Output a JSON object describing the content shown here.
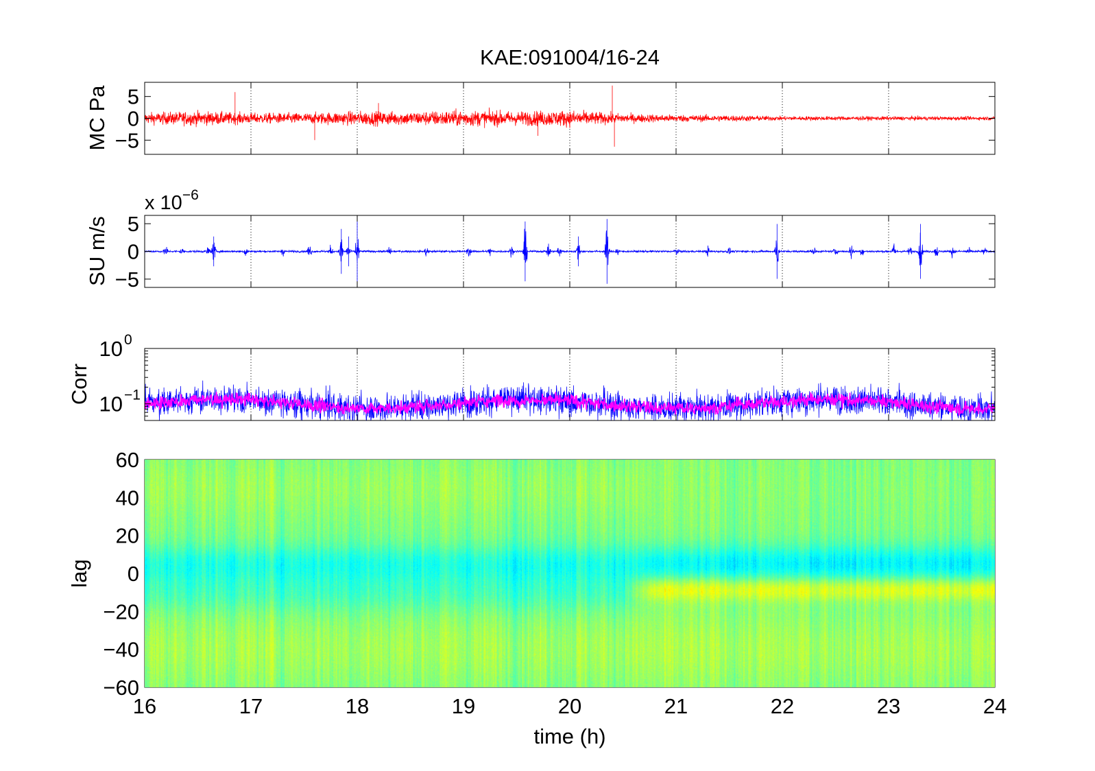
{
  "figure": {
    "title": "KAE:091004/16-24",
    "xlabel": "time (h)",
    "x_ticks": [
      "16",
      "17",
      "18",
      "19",
      "20",
      "21",
      "22",
      "23",
      "24"
    ]
  },
  "chart_data": [
    {
      "type": "line",
      "panel": "pressure",
      "ylabel": "MC Pa",
      "xlim": [
        16,
        24
      ],
      "ylim": [
        -8,
        8
      ],
      "y_ticks": [
        "5",
        "0",
        "−5"
      ],
      "color": "#ff0000",
      "grid": "vertical dotted",
      "envelope": {
        "x": [
          16,
          16.5,
          17,
          17.5,
          18,
          18.5,
          19,
          19.5,
          20,
          20.5,
          21,
          21.5,
          22,
          22.5,
          23,
          23.5,
          24
        ],
        "amplitude": [
          1.6,
          2.0,
          1.5,
          1.5,
          2.0,
          1.9,
          2.3,
          2.0,
          2.3,
          1.3,
          1.0,
          0.9,
          0.6,
          0.6,
          0.55,
          0.55,
          0.5
        ]
      },
      "spikes": [
        {
          "x": 16.85,
          "y": 6
        },
        {
          "x": 17.6,
          "y": -5
        },
        {
          "x": 18.2,
          "y": 3.5
        },
        {
          "x": 20.4,
          "y": 7.5
        },
        {
          "x": 20.42,
          "y": -6.5
        },
        {
          "x": 19.7,
          "y": -4
        }
      ]
    },
    {
      "type": "line",
      "panel": "seismic",
      "ylabel": "SU m/s",
      "exponent": "x 10",
      "exponent_power": "−6",
      "xlim": [
        16,
        24
      ],
      "ylim": [
        -6.5,
        6.5
      ],
      "y_ticks": [
        "5",
        "0",
        "−5"
      ],
      "color": "#0000ff",
      "grid": "vertical dotted",
      "baseline_noise": 0.12,
      "bursts": [
        {
          "x": 16.2,
          "a": 1.5
        },
        {
          "x": 16.35,
          "a": 1.0
        },
        {
          "x": 16.6,
          "a": 1.5
        },
        {
          "x": 16.65,
          "a": 3
        },
        {
          "x": 16.95,
          "a": 1.5
        },
        {
          "x": 17.3,
          "a": 1.2
        },
        {
          "x": 17.55,
          "a": 2.2
        },
        {
          "x": 17.75,
          "a": 1.5
        },
        {
          "x": 17.85,
          "a": 4.5
        },
        {
          "x": 17.92,
          "a": 3
        },
        {
          "x": 18.0,
          "a": 6.5
        },
        {
          "x": 18.3,
          "a": 1.2
        },
        {
          "x": 18.65,
          "a": 1.5
        },
        {
          "x": 19.05,
          "a": 1.5
        },
        {
          "x": 19.25,
          "a": 1.2
        },
        {
          "x": 19.45,
          "a": 1.5
        },
        {
          "x": 19.58,
          "a": 6
        },
        {
          "x": 19.8,
          "a": 1.8
        },
        {
          "x": 19.9,
          "a": 2
        },
        {
          "x": 20.08,
          "a": 3
        },
        {
          "x": 20.35,
          "a": 6.5
        },
        {
          "x": 20.45,
          "a": 1.5
        },
        {
          "x": 21.0,
          "a": 1.2
        },
        {
          "x": 21.3,
          "a": 1.2
        },
        {
          "x": 21.5,
          "a": 1.0
        },
        {
          "x": 21.95,
          "a": 5.5
        },
        {
          "x": 22.3,
          "a": 1.0
        },
        {
          "x": 22.5,
          "a": 1.3
        },
        {
          "x": 22.65,
          "a": 2.5
        },
        {
          "x": 22.75,
          "a": 1.2
        },
        {
          "x": 23.05,
          "a": 2
        },
        {
          "x": 23.2,
          "a": 1.5
        },
        {
          "x": 23.3,
          "a": 5.5
        },
        {
          "x": 23.45,
          "a": 2
        },
        {
          "x": 23.6,
          "a": 1.5
        },
        {
          "x": 23.75,
          "a": 1.2
        },
        {
          "x": 23.9,
          "a": 1.0
        }
      ]
    },
    {
      "type": "line",
      "panel": "correlation",
      "ylabel": "Corr",
      "scale": "log",
      "xlim": [
        16,
        24
      ],
      "ylim": [
        0.05,
        1
      ],
      "y_ticks": [
        {
          "base": "10",
          "exp": "0"
        },
        {
          "base": "10",
          "exp": "−1"
        }
      ],
      "series": [
        {
          "color": "#0000ff",
          "median": 0.1,
          "range": [
            0.05,
            0.35
          ]
        },
        {
          "color": "#ff00ff",
          "median": 0.1,
          "range": [
            0.06,
            0.2
          ]
        }
      ],
      "grid": "vertical dotted"
    },
    {
      "type": "heatmap",
      "panel": "lag",
      "ylabel": "lag",
      "xlim": [
        16,
        24
      ],
      "ylim": [
        -60,
        60
      ],
      "y_ticks": [
        "60",
        "40",
        "20",
        "0",
        "−20",
        "−40",
        "−60"
      ],
      "colormap": "jet",
      "features": [
        {
          "x": [
            16,
            24
          ],
          "lag": [
            -15,
            15
          ],
          "description_value": "negative correlation band near lag 0"
        },
        {
          "x": [
            20.5,
            24
          ],
          "lag": [
            -15,
            -3
          ],
          "description_value": "positive band below lag 0"
        }
      ]
    }
  ]
}
